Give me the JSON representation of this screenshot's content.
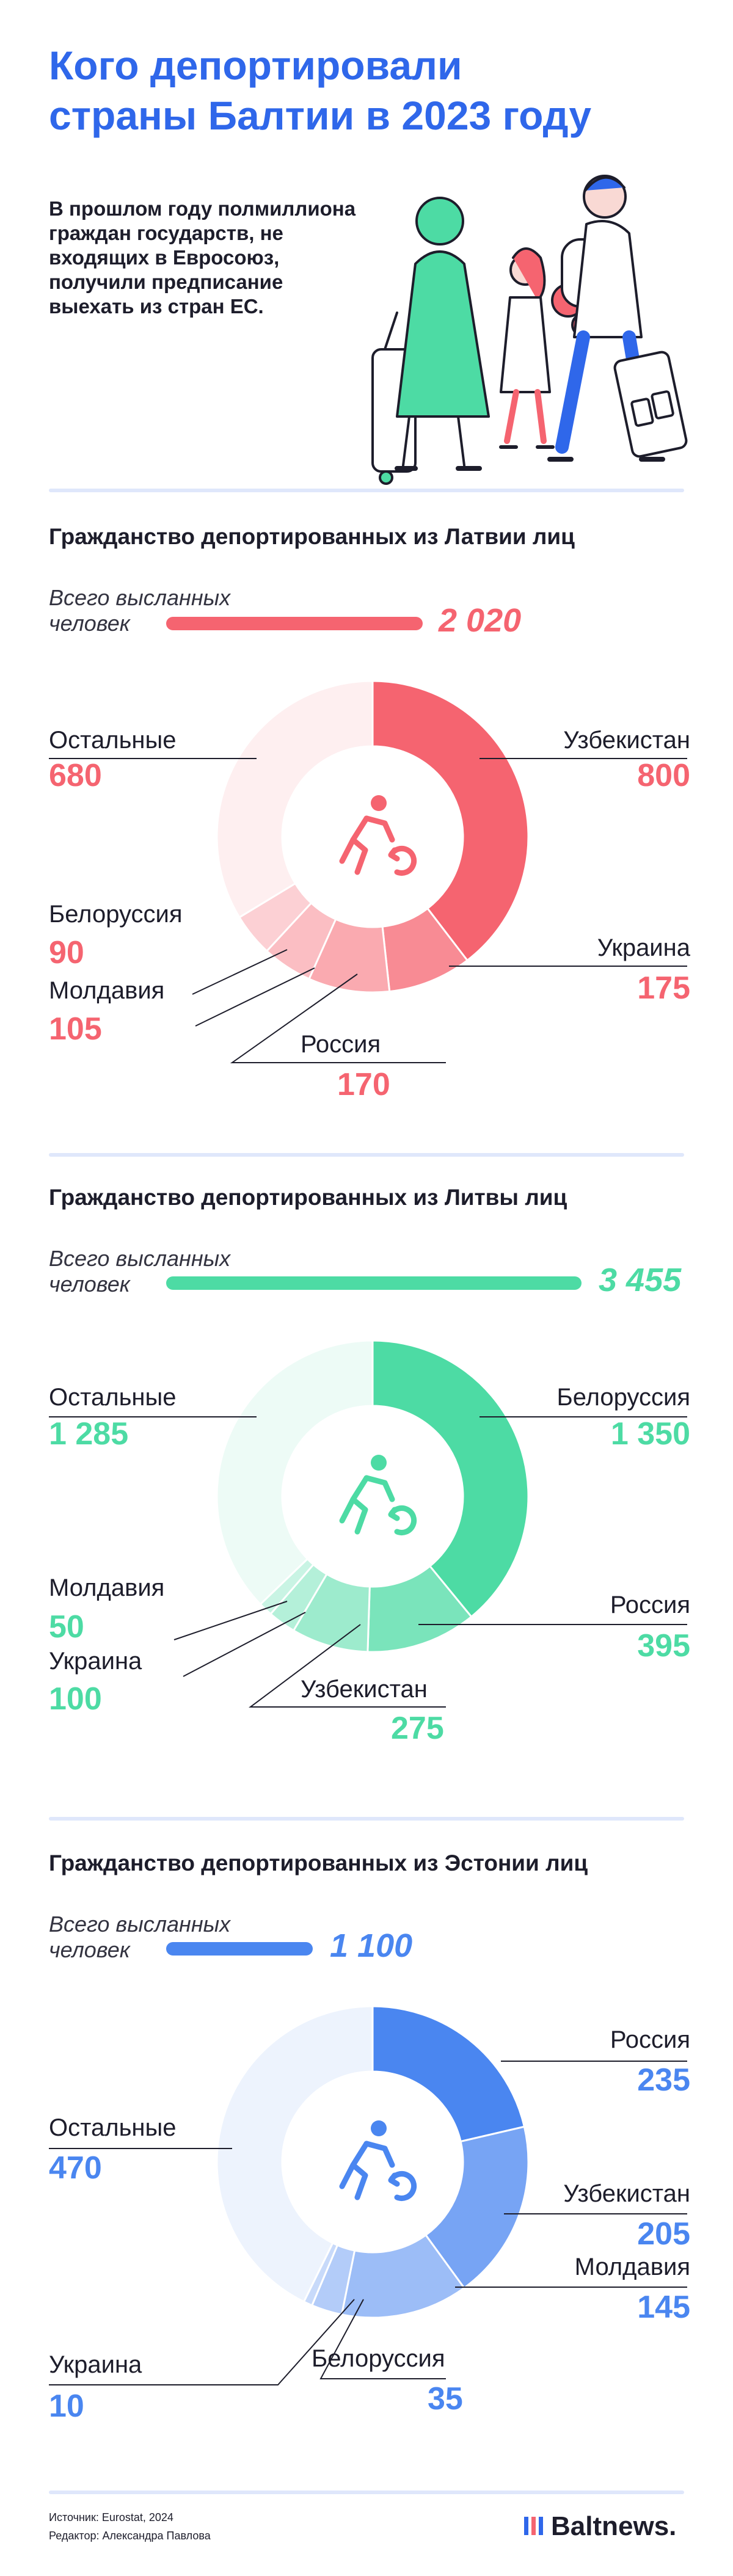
{
  "header": {
    "title_line1": "Кого депортировали",
    "title_line2": "страны Балтии в 2023 году",
    "lead": "В прошлом году полмиллиона граждан государств, не входящих в Евросоюз, получили предписание выехать из стран ЕС."
  },
  "colors": {
    "latvia": "#f56470",
    "lithuania": "#4ddba4",
    "estonia": "#4a86f0",
    "divider": "#dfe7fb",
    "title": "#2f67ea"
  },
  "sections": [
    {
      "title": "Гражданство депортированных из Латвии лиц",
      "total_label_1": "Всего высланных",
      "total_label_2": "человек",
      "total": "2 020",
      "labels": [
        {
          "name": "Узбекистан",
          "value": "800"
        },
        {
          "name": "Украина",
          "value": "175"
        },
        {
          "name": "Россия",
          "value": "170"
        },
        {
          "name": "Молдавия",
          "value": "105"
        },
        {
          "name": "Белоруссия",
          "value": "90"
        },
        {
          "name": "Остальные",
          "value": "680"
        }
      ]
    },
    {
      "title": "Гражданство депортированных из Литвы лиц",
      "total_label_1": "Всего высланных",
      "total_label_2": "человек",
      "total": "3 455",
      "labels": [
        {
          "name": "Белоруссия",
          "value": "1 350"
        },
        {
          "name": "Россия",
          "value": "395"
        },
        {
          "name": "Узбекистан",
          "value": "275"
        },
        {
          "name": "Украина",
          "value": "100"
        },
        {
          "name": "Молдавия",
          "value": "50"
        },
        {
          "name": "Остальные",
          "value": "1 285"
        }
      ]
    },
    {
      "title": "Гражданство депортированных из Эстонии лиц",
      "total_label_1": "Всего высланных",
      "total_label_2": "человек",
      "total": "1 100",
      "labels": [
        {
          "name": "Россия",
          "value": "235"
        },
        {
          "name": "Узбекистан",
          "value": "205"
        },
        {
          "name": "Молдавия",
          "value": "145"
        },
        {
          "name": "Белоруссия",
          "value": "35"
        },
        {
          "name": "Украина",
          "value": "10"
        },
        {
          "name": "Остальные",
          "value": "470"
        }
      ]
    }
  ],
  "chart_data": [
    {
      "type": "pie",
      "title": "Гражданство депортированных из Латвии лиц",
      "total": 2020,
      "categories": [
        "Узбекистан",
        "Украина",
        "Россия",
        "Молдавия",
        "Белоруссия",
        "Остальные"
      ],
      "values": [
        800,
        175,
        170,
        105,
        90,
        680
      ]
    },
    {
      "type": "pie",
      "title": "Гражданство депортированных из Литвы лиц",
      "total": 3455,
      "categories": [
        "Белоруссия",
        "Россия",
        "Узбекистан",
        "Украина",
        "Молдавия",
        "Остальные"
      ],
      "values": [
        1350,
        395,
        275,
        100,
        50,
        1285
      ]
    },
    {
      "type": "pie",
      "title": "Гражданство депортированных из Эстонии лиц",
      "total": 1100,
      "categories": [
        "Россия",
        "Узбекистан",
        "Молдавия",
        "Белоруссия",
        "Украина",
        "Остальные"
      ],
      "values": [
        235,
        205,
        145,
        35,
        10,
        470
      ]
    }
  ],
  "footer": {
    "source": "Источник: Eurostat, 2024",
    "editor": "Редактор: Александра Павлова",
    "logo": "Baltnews."
  }
}
